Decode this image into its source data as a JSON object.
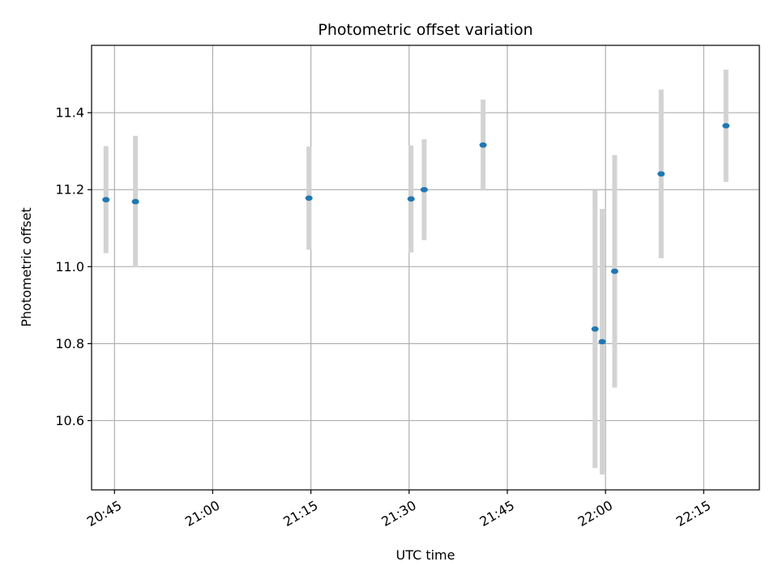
{
  "chart_data": {
    "type": "scatter",
    "title": "Photometric offset variation",
    "xlabel": "UTC time",
    "ylabel": "Photometric offset",
    "x_unit": "UTC time of day (HH:MM)",
    "xlim": [
      "20:41:30",
      "22:23:30"
    ],
    "ylim": [
      10.42,
      11.575
    ],
    "x_ticks": [
      "20:45",
      "21:00",
      "21:15",
      "21:30",
      "21:45",
      "22:00",
      "22:15"
    ],
    "y_ticks": [
      10.6,
      10.8,
      11.0,
      11.2,
      11.4
    ],
    "y_tick_labels": [
      "10.6",
      "10.8",
      "11.0",
      "11.2",
      "11.4"
    ],
    "grid": true,
    "legend": "none",
    "marker_color": "#1f77b4",
    "errorbar_color": "#d3d3d3",
    "series": [
      {
        "points": [
          {
            "x": "20:43:42",
            "y": 11.174,
            "yerr": 0.139
          },
          {
            "x": "20:48:12",
            "y": 11.169,
            "yerr": 0.171
          },
          {
            "x": "21:14:42",
            "y": 11.178,
            "yerr": 0.134
          },
          {
            "x": "21:30:18",
            "y": 11.176,
            "yerr": 0.139
          },
          {
            "x": "21:32:18",
            "y": 11.2,
            "yerr": 0.131
          },
          {
            "x": "21:41:18",
            "y": 11.316,
            "yerr": 0.118
          },
          {
            "x": "21:58:24",
            "y": 10.838,
            "yerr": 0.361
          },
          {
            "x": "21:59:30",
            "y": 10.805,
            "yerr": 0.345
          },
          {
            "x": "22:01:24",
            "y": 10.988,
            "yerr": 0.302
          },
          {
            "x": "22:08:30",
            "y": 11.241,
            "yerr": 0.219
          },
          {
            "x": "22:18:24",
            "y": 11.366,
            "yerr": 0.146
          }
        ]
      }
    ]
  }
}
